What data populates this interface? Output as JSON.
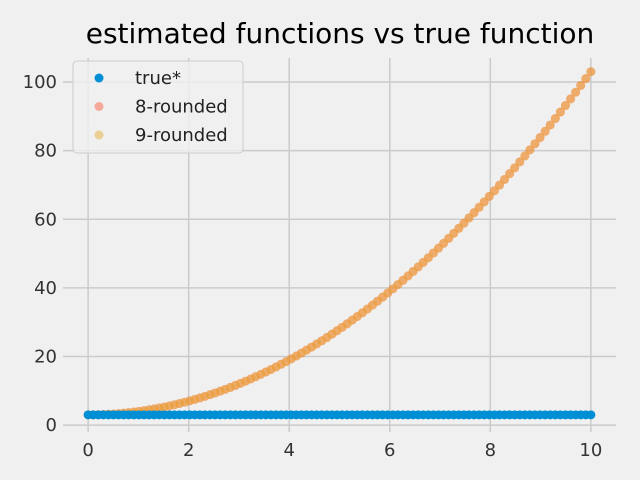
{
  "chart_data": {
    "type": "scatter",
    "title": "estimated functions vs true function",
    "xlabel": "",
    "ylabel": "",
    "xlim": [
      -0.5,
      10.5
    ],
    "ylim": [
      -2,
      107
    ],
    "x_ticks": [
      0,
      2,
      4,
      6,
      8,
      10
    ],
    "y_ticks": [
      0,
      20,
      40,
      60,
      80,
      100
    ],
    "grid": true,
    "legend_position": "top-left",
    "x_range": [
      0,
      10
    ],
    "n_points": 100,
    "series": [
      {
        "name": "true*",
        "color": "#008fd5",
        "opacity": 1.0,
        "formula": "constant",
        "constant": 3
      },
      {
        "name": "8-rounded",
        "color": "#fc4f30",
        "opacity": 0.45,
        "formula": "x^2 + 3"
      },
      {
        "name": "9-rounded",
        "color": "#e5ae38",
        "opacity": 0.5,
        "formula": "x^2 + 3"
      }
    ]
  }
}
